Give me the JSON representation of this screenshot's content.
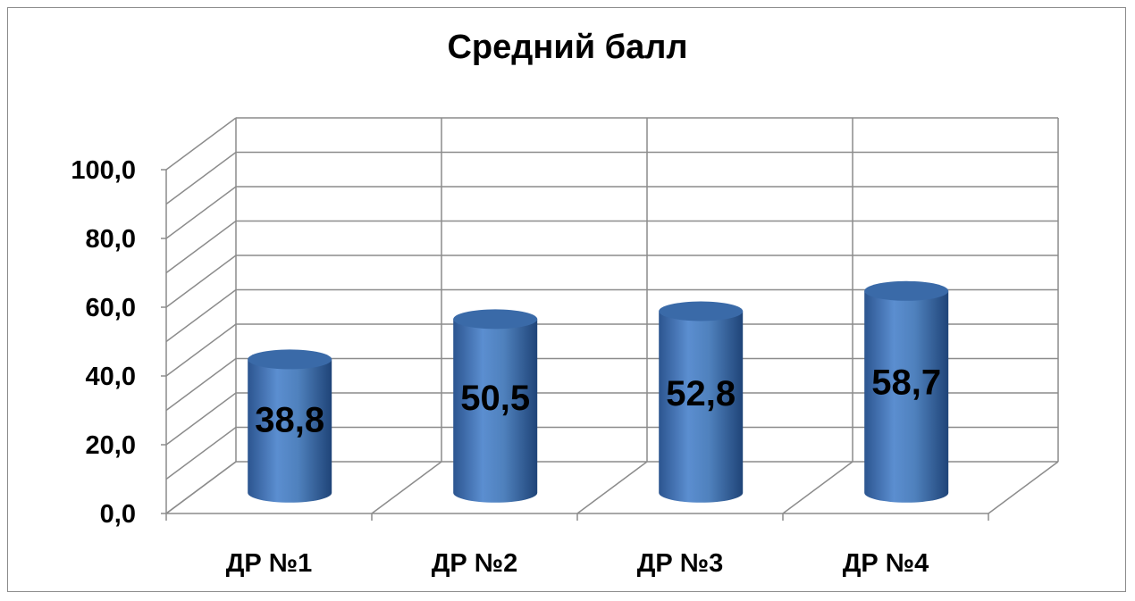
{
  "chart_data": {
    "type": "bar",
    "title": "Средний балл",
    "categories": [
      "ДР №1",
      "ДР №2",
      "ДР №3",
      "ДР №4"
    ],
    "values": [
      38.8,
      50.5,
      52.8,
      58.7
    ],
    "value_labels": [
      "38,8",
      "50,5",
      "52,8",
      "58,7"
    ],
    "y_ticks": [
      "0,0",
      "20,0",
      "40,0",
      "60,0",
      "80,0",
      "100,0"
    ],
    "y_tick_values": [
      0,
      20,
      40,
      60,
      80,
      100
    ],
    "ylim": [
      0,
      100
    ],
    "xlabel": "",
    "ylabel": "",
    "grid": true,
    "style": "3d-cylinder",
    "legend": "none",
    "colors": {
      "bar": "#4f81bd",
      "bar_dark": "#2c5590",
      "bar_top": "#3a6aa8",
      "grid": "#8c8c8c"
    }
  }
}
